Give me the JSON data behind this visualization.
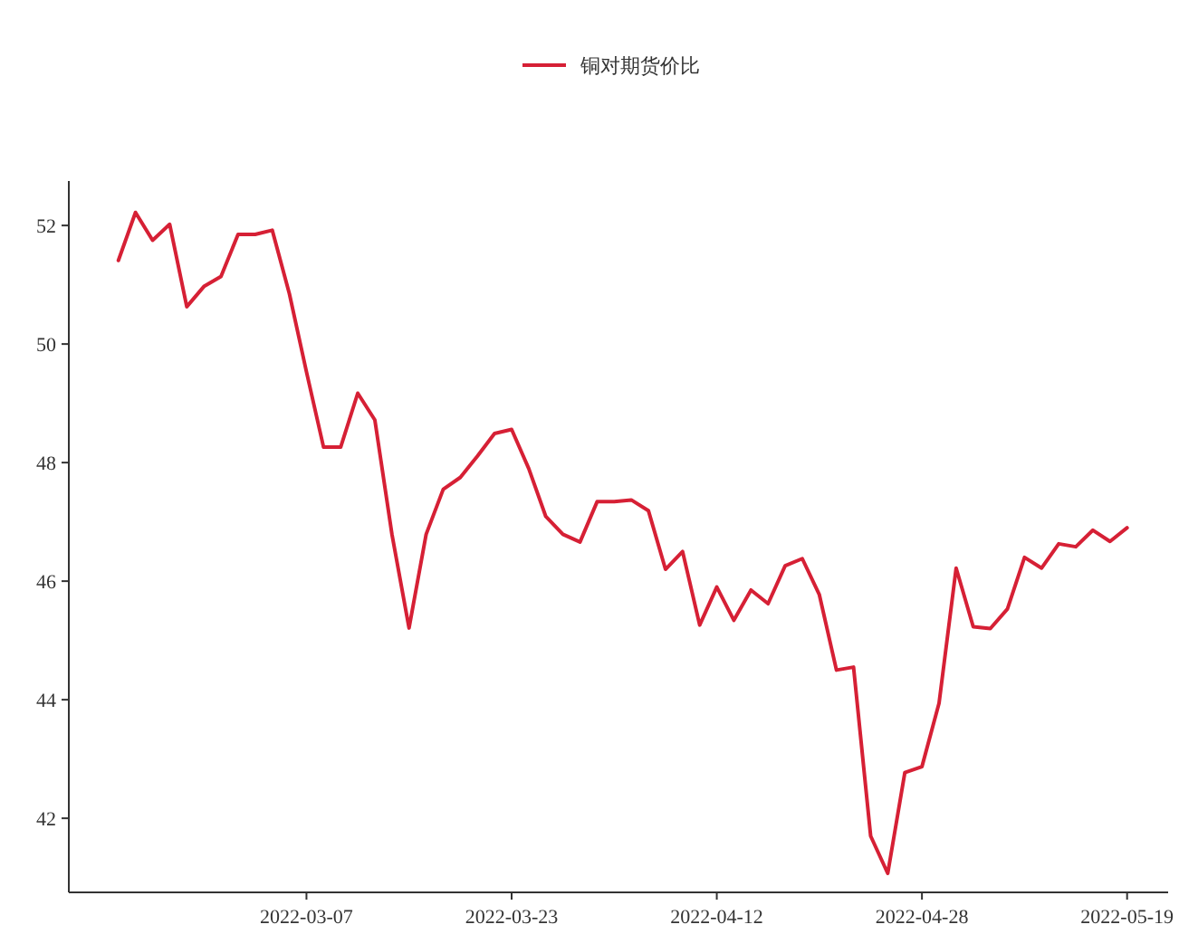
{
  "chart_data": {
    "type": "line",
    "categories": [
      null,
      null,
      null,
      null,
      null,
      null,
      null,
      null,
      null,
      null,
      null,
      "2022-03-07",
      null,
      null,
      null,
      null,
      null,
      null,
      null,
      null,
      null,
      null,
      null,
      "2022-03-23",
      null,
      null,
      null,
      null,
      null,
      null,
      null,
      null,
      null,
      null,
      null,
      "2022-04-12",
      null,
      null,
      null,
      null,
      null,
      null,
      null,
      null,
      null,
      null,
      null,
      "2022-04-28",
      null,
      null,
      null,
      null,
      null,
      null,
      null,
      null,
      null,
      null,
      null,
      "2022-05-19"
    ],
    "series": [
      {
        "name": "铜对期货价比",
        "color": "#d62035",
        "values": [
          51.41,
          52.22,
          51.75,
          52.02,
          50.63,
          50.97,
          51.14,
          51.85,
          51.85,
          51.92,
          50.85,
          49.53,
          48.26,
          48.26,
          49.17,
          48.72,
          46.79,
          45.21,
          46.79,
          47.55,
          47.75,
          48.11,
          48.49,
          48.56,
          47.9,
          47.09,
          46.79,
          46.66,
          47.34,
          47.34,
          47.37,
          47.19,
          46.2,
          46.5,
          45.26,
          45.9,
          45.34,
          45.85,
          45.62,
          46.26,
          46.38,
          45.77,
          44.5,
          44.55,
          41.7,
          41.07,
          42.77,
          42.87,
          43.94,
          46.22,
          45.23,
          45.2,
          45.53,
          46.4,
          46.22,
          46.63,
          46.58,
          46.86,
          46.67,
          46.9
        ]
      }
    ],
    "ylim": [
      40.75,
      52.75
    ],
    "yticks": [
      42,
      44,
      46,
      48,
      50,
      52
    ],
    "legend": "top"
  }
}
